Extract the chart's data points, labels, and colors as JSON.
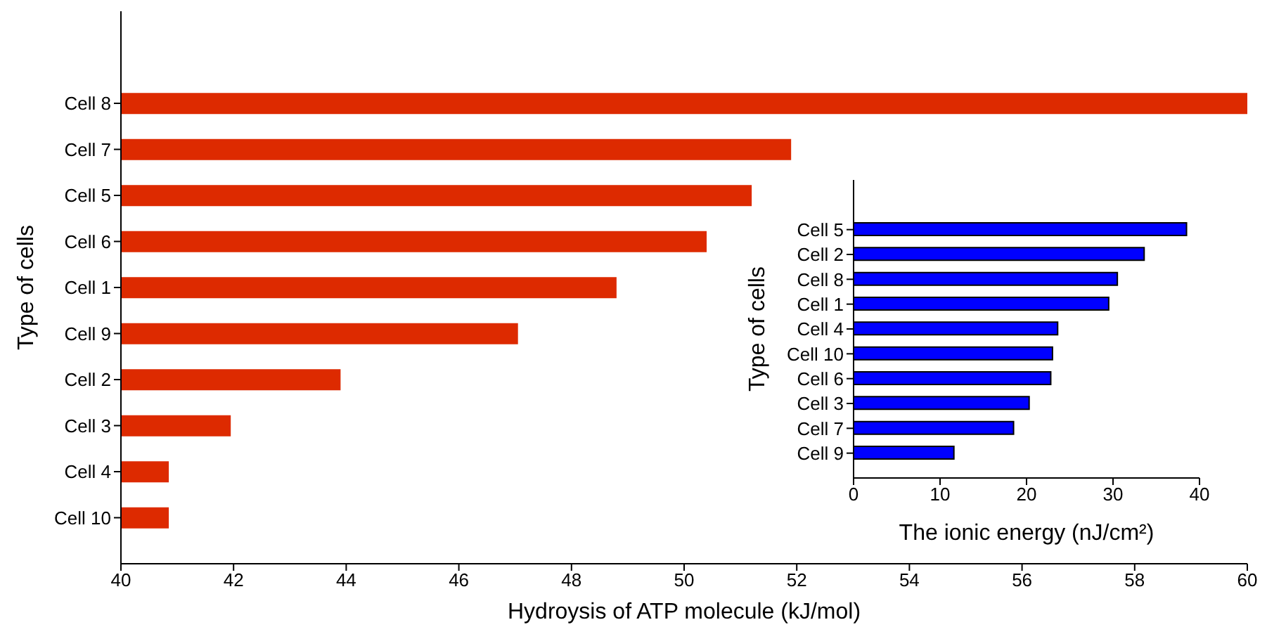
{
  "chart_data": [
    {
      "type": "bar",
      "orientation": "horizontal",
      "xlabel": "Hydroysis of ATP molecule (kJ/mol)",
      "ylabel": "Type of cells",
      "categories": [
        "Cell 8",
        "Cell 7",
        "Cell 5",
        "Cell 6",
        "Cell 1",
        "Cell 9",
        "Cell 2",
        "Cell 3",
        "Cell 4",
        "Cell 10"
      ],
      "values": [
        60,
        51.9,
        51.2,
        50.4,
        48.8,
        47.05,
        43.9,
        41.95,
        40.85,
        40.85
      ],
      "color": "#dd2a00",
      "xlim": [
        40,
        60
      ],
      "xticks": [
        40,
        42,
        44,
        46,
        48,
        50,
        52,
        54,
        56,
        58,
        60
      ],
      "grid": false
    },
    {
      "type": "bar",
      "orientation": "horizontal",
      "xlabel": "The ionic energy (nJ/cm²)",
      "ylabel": "Type of cells",
      "categories": [
        "Cell 5",
        "Cell 2",
        "Cell 8",
        "Cell 1",
        "Cell 4",
        "Cell 10",
        "Cell 6",
        "Cell 3",
        "Cell 7",
        "Cell 9"
      ],
      "values": [
        38.5,
        33.6,
        30.5,
        29.5,
        23.6,
        23.0,
        22.8,
        20.3,
        18.5,
        11.6
      ],
      "color": "#0000ff",
      "xlim": [
        0,
        40
      ],
      "xticks": [
        0,
        10,
        20,
        30,
        40
      ],
      "grid": false
    }
  ]
}
